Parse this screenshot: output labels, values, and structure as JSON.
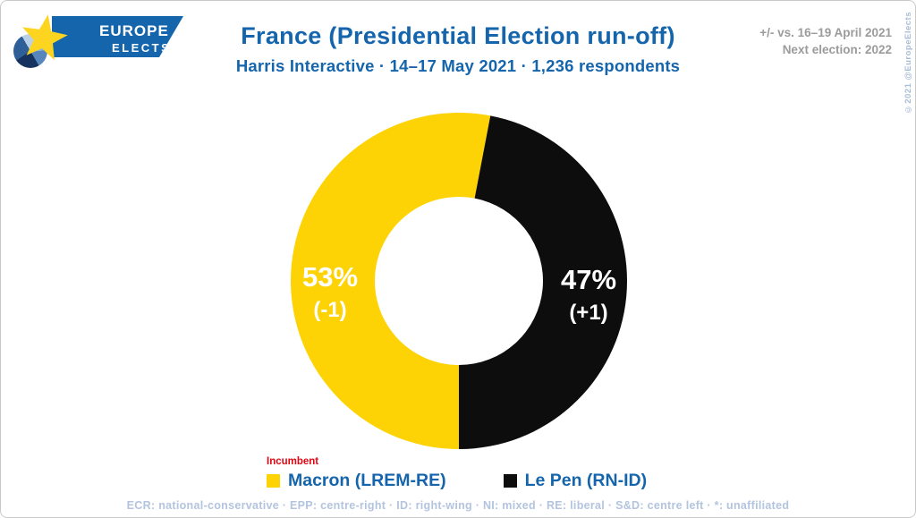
{
  "header": {
    "logo": {
      "line1": "EUROPE",
      "line2": "ELECTS"
    },
    "title": "France (Presidential Election run-off)",
    "subtitle": "Harris Interactive · 14–17 May 2021 · 1,236 respondents",
    "note_line1": "+/- vs. 16–19 April 2021",
    "note_line2": "Next election: 2022",
    "copyright": "©2021 @EuropeElects"
  },
  "chart_data": {
    "type": "pie",
    "donut": true,
    "hole_ratio": 0.5,
    "start_angle_deg": 180,
    "direction": "clockwise",
    "title": "France (Presidential Election run-off)",
    "pollster": "Harris Interactive",
    "fieldwork": "14–17 May 2021",
    "respondents": "1,236",
    "series": [
      {
        "name": "Macron (LREM-RE)",
        "value": 53,
        "label": "53%",
        "change": "(-1)",
        "color": "#FDD306",
        "incumbent": true
      },
      {
        "name": "Le Pen (RN-ID)",
        "value": 47,
        "label": "47%",
        "change": "(+1)",
        "color": "#0D0D0D",
        "incumbent": false
      }
    ]
  },
  "legend": {
    "incumbent_label": "Incumbent",
    "items": [
      {
        "label": "Macron (LREM-RE)",
        "color": "#FDD306"
      },
      {
        "label": "Le Pen (RN-ID)",
        "color": "#0D0D0D"
      }
    ]
  },
  "footer": {
    "text": "ECR: national-conservative · EPP: centre-right · ID: right-wing · NI: mixed · RE: liberal · S&D: centre left · *: unaffiliated"
  },
  "colors": {
    "brand_blue": "#1565AD",
    "yellow": "#FDD306",
    "black": "#0D0D0D",
    "incumbent_red": "#E30613",
    "note_gray": "#9B9B9B",
    "footer_blue": "#B3C4DE",
    "star_yellow": "#FDD420"
  }
}
